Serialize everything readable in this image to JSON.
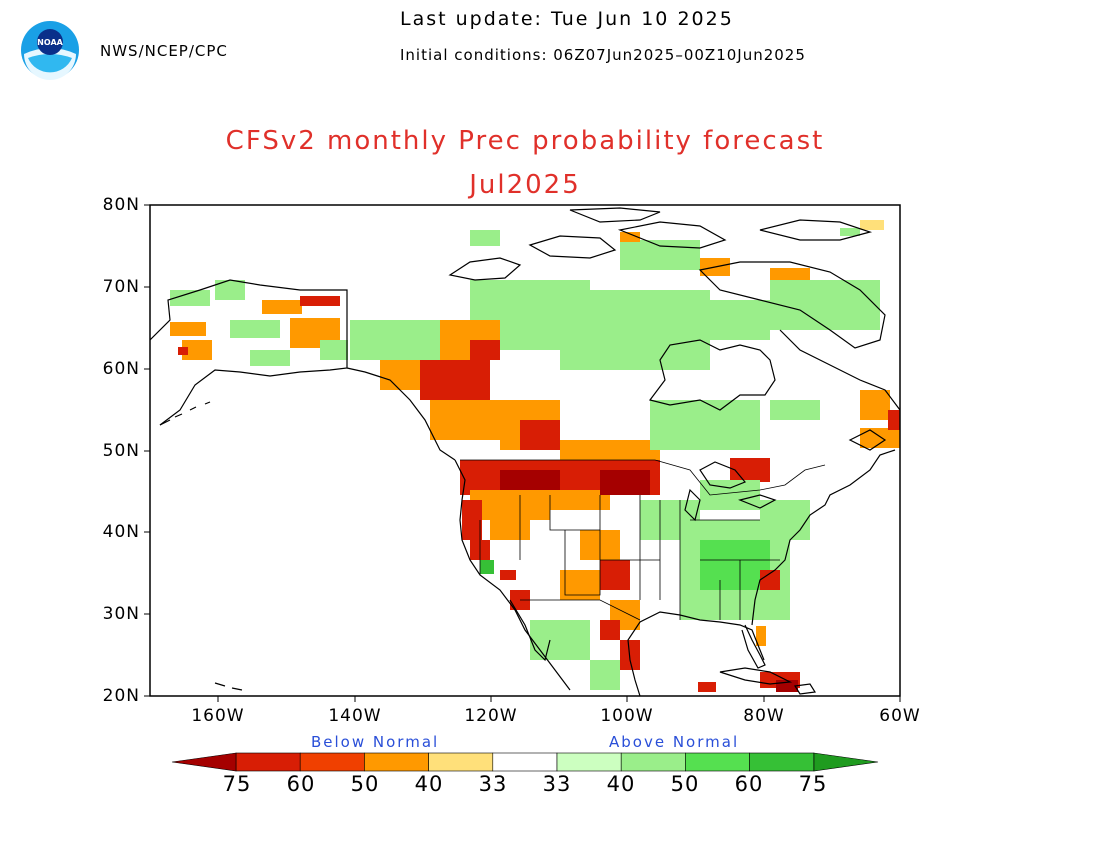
{
  "header": {
    "org": "NWS/NCEP/CPC",
    "last_update": "Last update: Tue Jun 10 2025",
    "initial_conditions": "Initial conditions: 06Z07Jun2025–00Z10Jun2025",
    "title": "CFSv2 monthly Prec probability forecast",
    "subtitle": "Jul2025",
    "logo_text": "NOAA"
  },
  "map": {
    "lat_labels": [
      "80N",
      "70N",
      "60N",
      "50N",
      "40N",
      "30N",
      "20N"
    ],
    "lon_labels": [
      "160W",
      "140W",
      "120W",
      "100W",
      "80W",
      "60W"
    ],
    "lat_range": [
      20,
      80
    ],
    "lon_range": [
      -170,
      -60
    ]
  },
  "legend": {
    "below_label": "Below Normal",
    "above_label": "Above Normal",
    "category_labels": [
      "75",
      "60",
      "50",
      "40",
      "33",
      "33",
      "40",
      "50",
      "60",
      "75"
    ],
    "below_colors": [
      "#a50000",
      "#d81e05",
      "#f04000",
      "#ff9900",
      "#ffe07a"
    ],
    "above_colors": [
      "#ccffc0",
      "#9aee8a",
      "#55e050",
      "#36c036",
      "#1f9b1f"
    ]
  }
}
